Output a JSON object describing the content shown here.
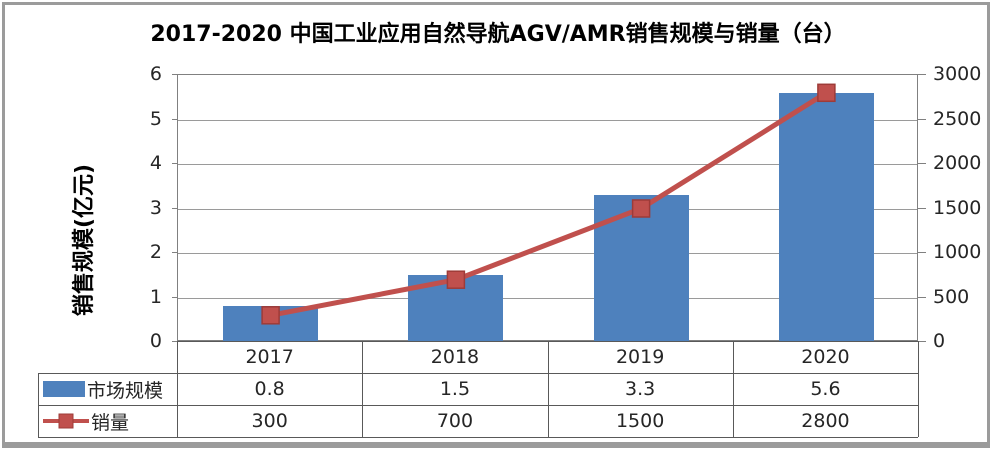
{
  "title": "2017-2020 中国工业应用自然导航AGV/AMR销售规模与销量（台）",
  "chart_data": {
    "type": "combo-bar-line",
    "categories": [
      "2017",
      "2018",
      "2019",
      "2020"
    ],
    "series": [
      {
        "name": "市场规模",
        "type": "bar",
        "axis": "left",
        "values": [
          0.8,
          1.5,
          3.3,
          5.6
        ],
        "color": "#4E81BD"
      },
      {
        "name": "销量",
        "type": "line",
        "axis": "right",
        "values": [
          300,
          700,
          1500,
          2800
        ],
        "color": "#C0504D",
        "marker": "square",
        "marker_border": "#9E3B38"
      }
    ],
    "left_axis": {
      "title": "销售规模(亿元)",
      "min": 0,
      "max": 6,
      "step": 1,
      "tick_labels": [
        "0",
        "1",
        "2",
        "3",
        "4",
        "5",
        "6"
      ]
    },
    "right_axis": {
      "min": 0,
      "max": 3000,
      "step": 500,
      "tick_labels": [
        "0",
        "500",
        "1000",
        "1500",
        "2000",
        "2500",
        "3000"
      ]
    },
    "gridlines": "horizontal",
    "legend_position": "data-table-left",
    "colors": {
      "grid": "#9A9A9A",
      "axis": "#808080",
      "table_border": "#595959",
      "text": "#262626",
      "frame": "#9B9B9B"
    }
  }
}
